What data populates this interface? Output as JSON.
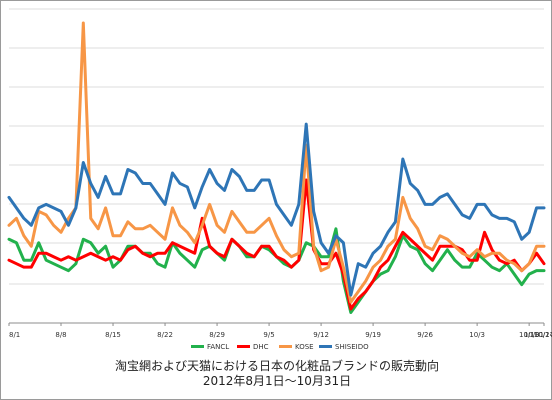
{
  "chart_data": {
    "type": "line",
    "title": "淘宝網および天猫における日本の化粧品ブランドの販売動向",
    "subtitle": "2012年8月1日～10月31日",
    "xlabel": "",
    "ylabel": "",
    "x_tick_labels": [
      "8/1",
      "8/8",
      "8/15",
      "8/22",
      "8/29",
      "9/5",
      "9/12",
      "9/19",
      "9/26",
      "10/3",
      "10/10",
      "10/17",
      "10/24",
      "10/31"
    ],
    "grid": "horizontal",
    "legend_position": "bottom-center",
    "y_axis_labels_shown": false,
    "series": [
      {
        "name": "FANCL",
        "color": "#22b14c",
        "values": [
          24,
          23,
          18,
          18,
          23,
          18,
          17,
          16,
          15,
          17,
          24,
          23,
          20,
          22,
          16,
          18,
          22,
          22,
          20,
          20,
          17,
          16,
          23,
          20,
          18,
          16,
          21,
          22,
          20,
          18,
          24,
          22,
          19,
          19,
          22,
          21,
          19,
          17,
          16,
          18,
          23,
          22,
          19,
          19,
          27,
          12,
          3,
          6,
          9,
          12,
          14,
          15,
          19,
          25,
          22,
          21,
          17,
          15,
          18,
          21,
          18,
          16,
          16,
          20,
          18,
          16,
          15,
          17,
          14,
          11,
          14,
          15,
          15
        ]
      },
      {
        "name": "DHC",
        "color": "#ff0000",
        "values": [
          18,
          17,
          16,
          16,
          20,
          20,
          19,
          18,
          19,
          18,
          19,
          20,
          19,
          18,
          19,
          18,
          21,
          22,
          20,
          19,
          20,
          20,
          23,
          22,
          21,
          20,
          30,
          22,
          20,
          19,
          24,
          22,
          20,
          19,
          22,
          22,
          19,
          18,
          16,
          18,
          41,
          21,
          17,
          17,
          20,
          14,
          4,
          7,
          9,
          12,
          16,
          18,
          22,
          26,
          24,
          22,
          20,
          18,
          22,
          22,
          22,
          21,
          18,
          18,
          26,
          21,
          18,
          17,
          18,
          15,
          17,
          20,
          17
        ]
      },
      {
        "name": "KOSE",
        "color": "#f79646",
        "values": [
          28,
          30,
          25,
          22,
          32,
          31,
          28,
          26,
          30,
          33,
          86,
          30,
          27,
          33,
          25,
          25,
          29,
          27,
          27,
          28,
          26,
          24,
          33,
          28,
          26,
          23,
          28,
          34,
          28,
          26,
          32,
          29,
          26,
          26,
          28,
          30,
          25,
          21,
          19,
          20,
          51,
          22,
          15,
          16,
          24,
          16,
          6,
          9,
          12,
          16,
          18,
          22,
          24,
          36,
          30,
          27,
          22,
          21,
          25,
          24,
          22,
          20,
          19,
          21,
          19,
          20,
          20,
          18,
          17,
          15,
          17,
          22,
          22
        ]
      },
      {
        "name": "SHISEIDO",
        "color": "#2e75b6",
        "values": [
          36,
          33,
          30,
          28,
          33,
          34,
          33,
          32,
          28,
          33,
          46,
          40,
          36,
          42,
          37,
          37,
          44,
          43,
          40,
          40,
          37,
          34,
          43,
          40,
          39,
          33,
          39,
          44,
          40,
          38,
          44,
          42,
          38,
          38,
          41,
          41,
          34,
          31,
          28,
          34,
          57,
          32,
          23,
          20,
          25,
          23,
          8,
          17,
          16,
          20,
          22,
          26,
          29,
          47,
          40,
          38,
          34,
          34,
          36,
          37,
          34,
          31,
          30,
          34,
          34,
          31,
          30,
          30,
          29,
          24,
          26,
          33,
          33
        ]
      }
    ]
  }
}
